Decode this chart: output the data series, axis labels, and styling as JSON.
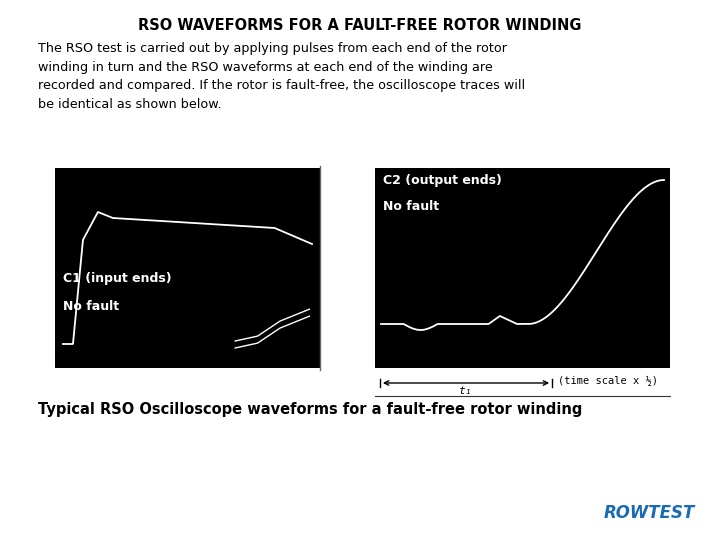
{
  "title": "RSO WAVEFORMS FOR A FAULT-FREE ROTOR WINDING",
  "body_text": "The RSO test is carried out by applying pulses from each end of the rotor\nwinding in turn and the RSO waveforms at each end of the winding are\nrecorded and compared. If the rotor is fault-free, the oscilloscope traces will\nbe identical as shown below.",
  "c1_label": "C1 (input ends)",
  "c1_sublabel": "No fault",
  "c2_label": "C2 (output ends)",
  "c2_sublabel": "No fault",
  "time_label": "(time scale x ½)",
  "t1_label": "t₁",
  "caption": "Typical RSO Oscilloscope waveforms for a fault-free rotor winding",
  "rowtest_label": "ROWTEST",
  "bg_color": "#ffffff",
  "osc_bg_color": "#000000",
  "text_color": "#000000",
  "white_color": "#ffffff",
  "rowtest_color": "#1a6bb5"
}
